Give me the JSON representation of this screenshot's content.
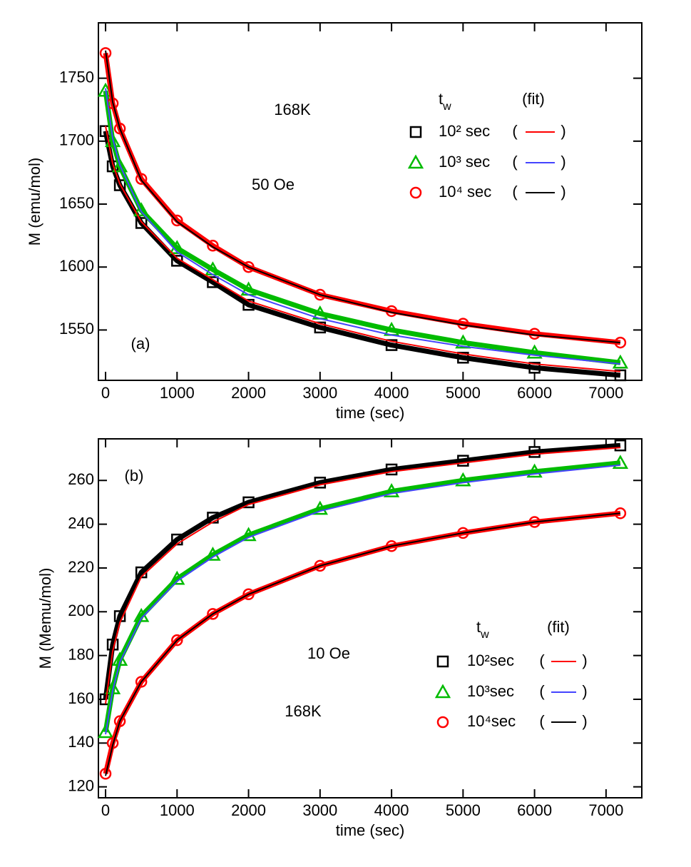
{
  "chart_data": [
    {
      "type": "line",
      "x_label": "time (sec)",
      "y_label": "M (emu/mol)",
      "annotations": [
        "168K",
        "50 Oe",
        "(a)"
      ],
      "legend_title": {
        "base": "t",
        "sub": "w"
      },
      "legend_fit_title": "(fit)",
      "fit_brackets": [
        "(",
        ")"
      ],
      "x": [
        0,
        100,
        200,
        500,
        1000,
        1500,
        2000,
        3000,
        4000,
        5000,
        6000,
        7200
      ],
      "xlim": [
        -100,
        7500
      ],
      "xticks": [
        0,
        1000,
        2000,
        3000,
        4000,
        5000,
        6000,
        7000
      ],
      "ylim": [
        1510,
        1794
      ],
      "yticks": [
        1550,
        1600,
        1650,
        1700,
        1750
      ],
      "series": [
        {
          "name": "10² sec",
          "color": "#000000",
          "marker": "square",
          "fit_color": "#ff0000",
          "values": [
            1708,
            1680,
            1665,
            1635,
            1605,
            1588,
            1570,
            1552,
            1538,
            1528,
            1520,
            1514
          ],
          "fit": [
            1712,
            1682,
            1666,
            1636,
            1607,
            1590,
            1573,
            1555,
            1541,
            1531,
            1523,
            1517
          ]
        },
        {
          "name": "10³ sec",
          "color": "#00bb00",
          "marker": "triangle",
          "fit_color": "#4444ff",
          "values": [
            1740,
            1700,
            1680,
            1645,
            1615,
            1598,
            1582,
            1563,
            1550,
            1540,
            1532,
            1524
          ],
          "fit": [
            1742,
            1702,
            1681,
            1644,
            1612,
            1594,
            1578,
            1559,
            1546,
            1537,
            1530,
            1523
          ]
        },
        {
          "name": "10⁴ sec",
          "color": "#ff0000",
          "marker": "circle",
          "fit_color": "#000000",
          "values": [
            1770,
            1730,
            1710,
            1670,
            1637,
            1617,
            1600,
            1578,
            1565,
            1555,
            1547,
            1540
          ],
          "fit": [
            1772,
            1731,
            1710,
            1669,
            1636,
            1616,
            1600,
            1578,
            1564,
            1554,
            1546,
            1540
          ]
        }
      ]
    },
    {
      "type": "line",
      "x_label": "time (sec)",
      "y_label": "M (Memu/mol)",
      "annotations": [
        "(b)",
        "10 Oe",
        "168K"
      ],
      "legend_title": {
        "base": "t",
        "sub": "w"
      },
      "legend_fit_title": "(fit)",
      "fit_brackets": [
        "(",
        ")"
      ],
      "x": [
        0,
        100,
        200,
        500,
        1000,
        1500,
        2000,
        3000,
        4000,
        5000,
        6000,
        7200
      ],
      "xlim": [
        -100,
        7500
      ],
      "xticks": [
        0,
        1000,
        2000,
        3000,
        4000,
        5000,
        6000,
        7000
      ],
      "ylim": [
        115,
        279
      ],
      "yticks": [
        120,
        140,
        160,
        180,
        200,
        220,
        240,
        260
      ],
      "series": [
        {
          "name": "10²sec",
          "color": "#000000",
          "marker": "square",
          "fit_color": "#ff0000",
          "values": [
            160,
            185,
            198,
            218,
            233,
            243,
            250,
            259,
            265,
            269,
            273,
            276
          ],
          "fit": [
            158,
            182,
            195,
            216,
            231,
            241,
            249,
            258,
            264,
            268,
            272,
            275
          ]
        },
        {
          "name": "10³sec",
          "color": "#00bb00",
          "marker": "triangle",
          "fit_color": "#4444ff",
          "values": [
            145,
            165,
            178,
            198,
            215,
            226,
            235,
            247,
            255,
            260,
            264,
            268
          ],
          "fit": [
            144,
            164,
            177,
            197,
            214,
            225,
            234,
            246,
            254,
            259,
            263,
            267
          ]
        },
        {
          "name": "10⁴sec",
          "color": "#ff0000",
          "marker": "circle",
          "fit_color": "#000000",
          "values": [
            126,
            140,
            150,
            168,
            187,
            199,
            208,
            221,
            230,
            236,
            241,
            245
          ],
          "fit": [
            125,
            139,
            150,
            168,
            187,
            199,
            208,
            221,
            230,
            236,
            241,
            245
          ]
        }
      ]
    }
  ]
}
